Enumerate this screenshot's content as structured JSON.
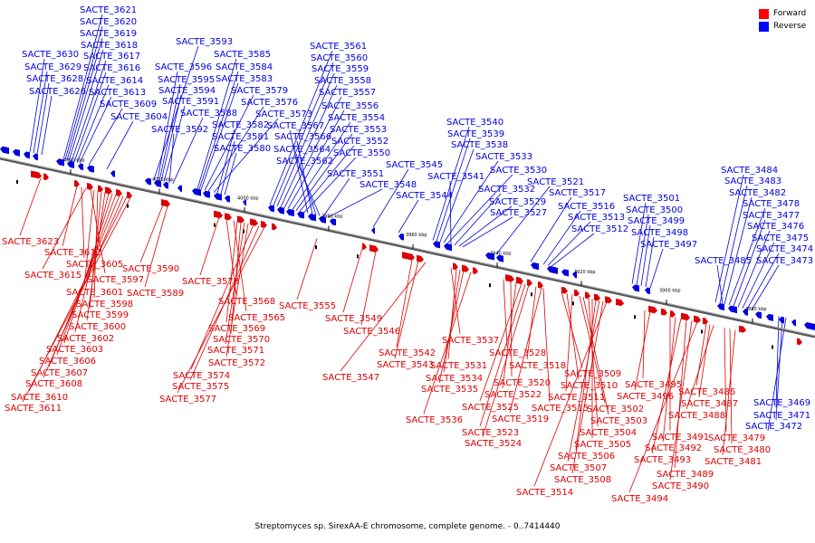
{
  "caption": "Streptomyces sp. SirexAA-E chromosome, complete genome. - 0..7414440",
  "legend": [
    {
      "label": "Forward",
      "color": "#ff0000"
    },
    {
      "label": "Reverse",
      "color": "#0000ff"
    }
  ],
  "colors": {
    "forward": "#dd0000",
    "reverse": "#0000dd",
    "axis": "#777777"
  },
  "ticks": [
    "4040 kbp",
    "4020 kbp",
    "4000 kbp",
    "3980 kbp",
    "3960 kbp",
    "3940 kbp",
    "3920 kbp",
    "3900 kbp",
    "3880 kbp"
  ],
  "reverse_labels": [
    "SACTE_3621",
    "SACTE_3620",
    "SACTE_3619",
    "SACTE_3618",
    "SACTE_3617",
    "SACTE_3616",
    "SACTE_3614",
    "SACTE_3613",
    "SACTE_3630",
    "SACTE_3629",
    "SACTE_3628",
    "SACTE_3626",
    "SACTE_3609",
    "SACTE_3604",
    "SACTE_3593",
    "SACTE_3596",
    "SACTE_3595",
    "SACTE_3594",
    "SACTE_3591",
    "SACTE_3592",
    "SACTE_3588",
    "SACTE_3585",
    "SACTE_3584",
    "SACTE_3583",
    "SACTE_3579",
    "SACTE_3576",
    "SACTE_3573",
    "SACTE_3582",
    "SACTE_3581",
    "SACTE_3580",
    "SACTE_3561",
    "SACTE_3560",
    "SACTE_3559",
    "SACTE_3558",
    "SACTE_3557",
    "SACTE_3556",
    "SACTE_3554",
    "SACTE_3553",
    "SACTE_3552",
    "SACTE_3550",
    "SACTE_3567",
    "SACTE_3566",
    "SACTE_3564",
    "SACTE_3562",
    "SACTE_3551",
    "SACTE_3548",
    "SACTE_3545",
    "SACTE_3544",
    "SACTE_3540",
    "SACTE_3539",
    "SACTE_3538",
    "SACTE_3533",
    "SACTE_3530",
    "SACTE_3541",
    "SACTE_3532",
    "SACTE_3529",
    "SACTE_3527",
    "SACTE_3521",
    "SACTE_3517",
    "SACTE_3516",
    "SACTE_3513",
    "SACTE_3512",
    "SACTE_3501",
    "SACTE_3500",
    "SACTE_3499",
    "SACTE_3498",
    "SACTE_3497",
    "SACTE_3484",
    "SACTE_3483",
    "SACTE_3482",
    "SACTE_3478",
    "SACTE_3477",
    "SACTE_3476",
    "SACTE_3475",
    "SACTE_3474",
    "SACTE_3485",
    "SACTE_3473",
    "SACTE_3469",
    "SACTE_3471",
    "SACTE_3472"
  ],
  "forward_labels": [
    "SACTE_3623",
    "SACTE_3612",
    "SACTE_3605",
    "SACTE_3615",
    "SACTE_3597",
    "SACTE_3601",
    "SACTE_3598",
    "SACTE_3599",
    "SACTE_3600",
    "SACTE_3602",
    "SACTE_3603",
    "SACTE_3606",
    "SACTE_3607",
    "SACTE_3608",
    "SACTE_3610",
    "SACTE_3611",
    "SACTE_3590",
    "SACTE_3589",
    "SACTE_3578",
    "SACTE_3568",
    "SACTE_3565",
    "SACTE_3569",
    "SACTE_3570",
    "SACTE_3571",
    "SACTE_3572",
    "SACTE_3574",
    "SACTE_3575",
    "SACTE_3577",
    "SACTE_3555",
    "SACTE_3549",
    "SACTE_3546",
    "SACTE_3542",
    "SACTE_3543",
    "SACTE_3547",
    "SACTE_3537",
    "SACTE_3531",
    "SACTE_3534",
    "SACTE_3535",
    "SACTE_3536",
    "SACTE_3528",
    "SACTE_3520",
    "SACTE_3522",
    "SACTE_3525",
    "SACTE_3523",
    "SACTE_3524",
    "SACTE_3518",
    "SACTE_3519",
    "SACTE_3515",
    "SACTE_3509",
    "SACTE_3510",
    "SACTE_3511",
    "SACTE_3502",
    "SACTE_3503",
    "SACTE_3504",
    "SACTE_3505",
    "SACTE_3506",
    "SACTE_3507",
    "SACTE_3508",
    "SACTE_3514",
    "SACTE_3495",
    "SACTE_3496",
    "SACTE_3491",
    "SACTE_3492",
    "SACTE_3493",
    "SACTE_3489",
    "SACTE_3490",
    "SACTE_3494",
    "SACTE_3486",
    "SACTE_3487",
    "SACTE_3488",
    "SACTE_3479",
    "SACTE_3480",
    "SACTE_3481"
  ]
}
